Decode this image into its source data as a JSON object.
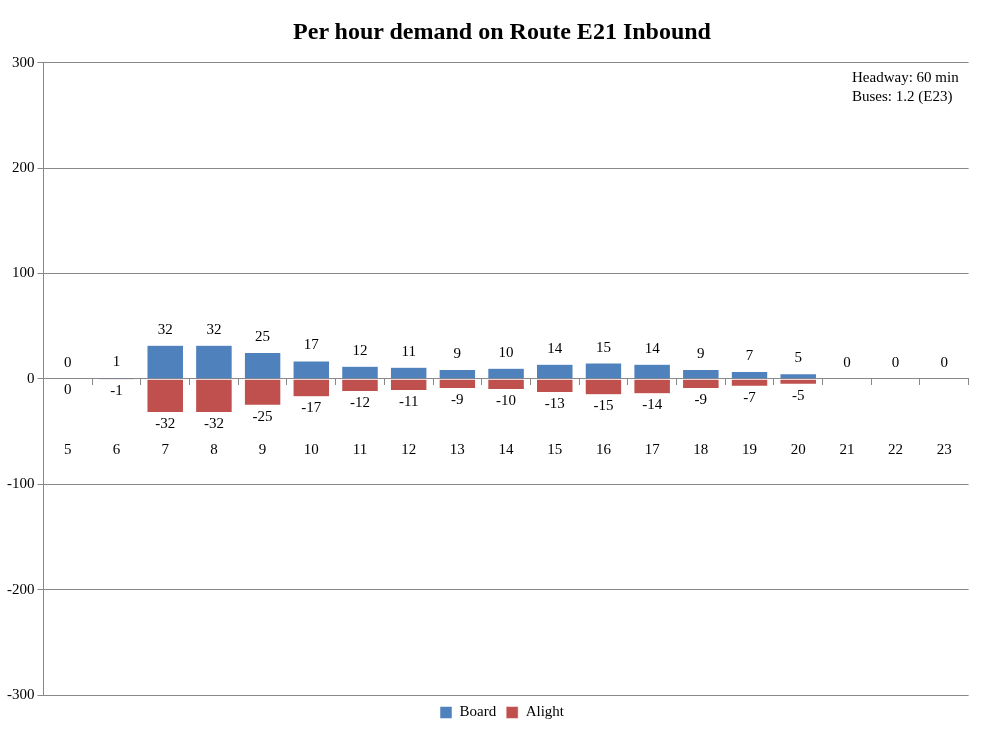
{
  "chart_data": {
    "type": "bar",
    "title": "Per hour demand on Route E21 Inbound",
    "categories": [
      "5",
      "6",
      "7",
      "8",
      "9",
      "10",
      "11",
      "12",
      "13",
      "14",
      "15",
      "16",
      "17",
      "18",
      "19",
      "20",
      "21",
      "22",
      "23"
    ],
    "series": [
      {
        "name": "Board",
        "color": "#4f81bd",
        "values": [
          0,
          1,
          32,
          32,
          25,
          17,
          12,
          11,
          9,
          10,
          14,
          15,
          14,
          9,
          7,
          5,
          0,
          0,
          0
        ],
        "value_labels": [
          "0",
          "1",
          "32",
          "32",
          "25",
          "17",
          "12",
          "11",
          "9",
          "10",
          "14",
          "15",
          "14",
          "9",
          "7",
          "5",
          "0",
          "0",
          "0"
        ]
      },
      {
        "name": "Alight",
        "color": "#c0504d",
        "values": [
          0,
          -1,
          -32,
          -32,
          -25,
          -17,
          -12,
          -11,
          -9,
          -10,
          -13,
          -15,
          -14,
          -9,
          -7,
          -5,
          0,
          0,
          0
        ],
        "value_labels": [
          "0",
          "-1",
          "-32",
          "-32",
          "-25",
          "-17",
          "-12",
          "-11",
          "-9",
          "-10",
          "-13",
          "-15",
          "-14",
          "-9",
          "-7",
          "-5",
          null,
          null,
          null
        ]
      }
    ],
    "ylim": [
      -300,
      300
    ],
    "yticks": [
      -300,
      -200,
      -100,
      0,
      100,
      200,
      300
    ],
    "grid": "y",
    "legend": "bottom",
    "stacked": true,
    "annotations": [
      "Headway: 60 min",
      "Buses: 1.2 (E23)"
    ]
  }
}
